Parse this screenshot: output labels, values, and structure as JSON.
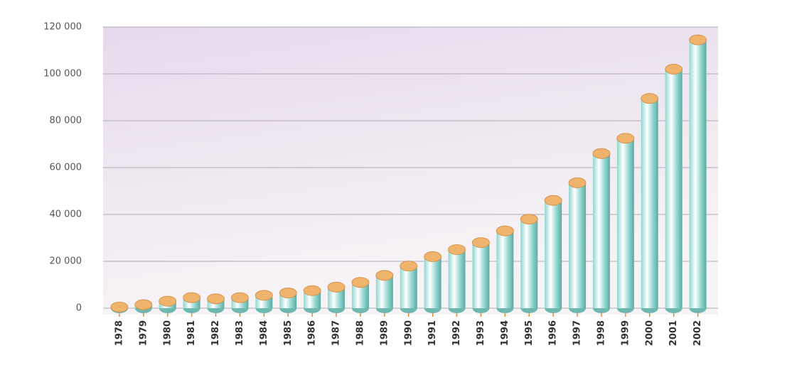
{
  "chart_data": {
    "type": "bar",
    "categories": [
      "1978",
      "1979",
      "1980",
      "1981",
      "1982",
      "1983",
      "1984",
      "1985",
      "1986",
      "1987",
      "1988",
      "1989",
      "1990",
      "1991",
      "1992",
      "1993",
      "1994",
      "1995",
      "1996",
      "1997",
      "1998",
      "1999",
      "2000",
      "2001",
      "2002"
    ],
    "values": [
      500,
      1500,
      3000,
      4500,
      4000,
      4500,
      5500,
      6500,
      7500,
      9000,
      11000,
      14000,
      18000,
      22000,
      25000,
      28000,
      33000,
      38000,
      46000,
      53500,
      66000,
      72500,
      89500,
      102000,
      114500
    ],
    "color": "#8fd6cf",
    "cap_color": "#f0b36b",
    "ylim": [
      0,
      120000
    ],
    "yticks": [
      {
        "value": 0,
        "label": "0"
      },
      {
        "value": 20000,
        "label": "20 000"
      },
      {
        "value": 40000,
        "label": "40 000"
      },
      {
        "value": 60000,
        "label": "60 000"
      },
      {
        "value": 80000,
        "label": "80 000"
      },
      {
        "value": 100000,
        "label": "100 000"
      },
      {
        "value": 120000,
        "label": "120 000"
      }
    ],
    "grid": true
  }
}
